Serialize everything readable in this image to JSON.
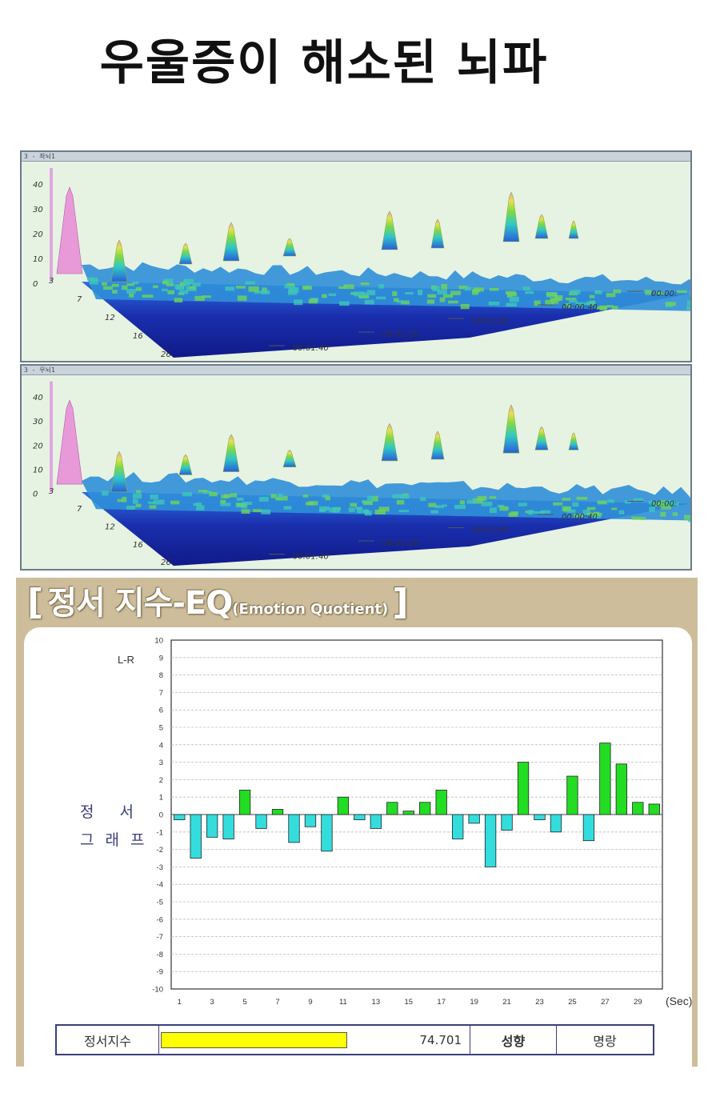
{
  "title": "우울증이 해소된 뇌파",
  "eeg_panels": [
    {
      "titlebar": "3 - 좌뇌1",
      "z_ticks": [
        "40",
        "30",
        "20",
        "10",
        "0"
      ],
      "freq_ticks": [
        "3",
        "7",
        "12",
        "16",
        "26"
      ],
      "time_ticks": [
        "00:01:40",
        "00:01:20",
        "00:01:00",
        "00:00:40",
        "00:00:"
      ],
      "colors": {
        "floor": "#18209a",
        "low": "#2a5ed8",
        "mid": "#2fc8c8",
        "high": "#7ad84a",
        "peak": "#e8e04a",
        "top": "#e89ad8"
      }
    },
    {
      "titlebar": "3 - 우뇌1",
      "z_ticks": [
        "40",
        "30",
        "20",
        "10",
        "0"
      ],
      "freq_ticks": [
        "3",
        "7",
        "12",
        "16",
        "26"
      ],
      "time_ticks": [
        "00:01:40",
        "00:01:20",
        "00:01:00",
        "00:00:40",
        "00:00:"
      ],
      "colors": {
        "floor": "#18209a",
        "low": "#2a5ed8",
        "mid": "#2fc8c8",
        "high": "#7ad84a",
        "peak": "#e8e04a",
        "top": "#e89ad8"
      }
    }
  ],
  "eq": {
    "header_bracket_open": "[",
    "header_main": "정서 지수-EQ",
    "header_sub": "(Emotion Quotient)",
    "header_bracket_close": "]",
    "lr_label": "L-R",
    "side_label_line1": "정서",
    "side_label_line2": "그래프",
    "table": {
      "label": "정서지수",
      "value": "74.701",
      "value_fraction": 0.47,
      "trait_label": "성향",
      "trait_value": "명랑"
    }
  },
  "chart_data": {
    "type": "bar",
    "title": "",
    "xlabel": "(Sec)",
    "ylabel": "L-R",
    "ylim": [
      -10,
      10
    ],
    "yticks": [
      10,
      9,
      8,
      7,
      6,
      5,
      4,
      3,
      2,
      1,
      0,
      -1,
      -2,
      -3,
      -4,
      -5,
      -6,
      -7,
      -8,
      -9,
      -10
    ],
    "x_tick_labels": [
      "1",
      "3",
      "5",
      "7",
      "9",
      "11",
      "13",
      "15",
      "17",
      "19",
      "21",
      "23",
      "25",
      "27",
      "29"
    ],
    "grid": true,
    "x": [
      1,
      2,
      3,
      4,
      5,
      6,
      7,
      8,
      9,
      10,
      11,
      12,
      13,
      14,
      15,
      16,
      17,
      18,
      19,
      20,
      21,
      22,
      23,
      24,
      25,
      26,
      27,
      28,
      29,
      30
    ],
    "values": [
      -0.3,
      -2.5,
      -1.3,
      -1.4,
      1.4,
      -0.8,
      0.3,
      -1.6,
      -0.7,
      -2.1,
      1.0,
      -0.3,
      -0.8,
      0.7,
      0.2,
      0.7,
      1.4,
      -1.4,
      -0.5,
      -3.0,
      -0.9,
      3.0,
      -0.3,
      -1.0,
      2.2,
      -1.5,
      4.1,
      2.9,
      0.7,
      0.6
    ],
    "colors": {
      "positive": "#22dd22",
      "negative": "#33dddd"
    }
  }
}
